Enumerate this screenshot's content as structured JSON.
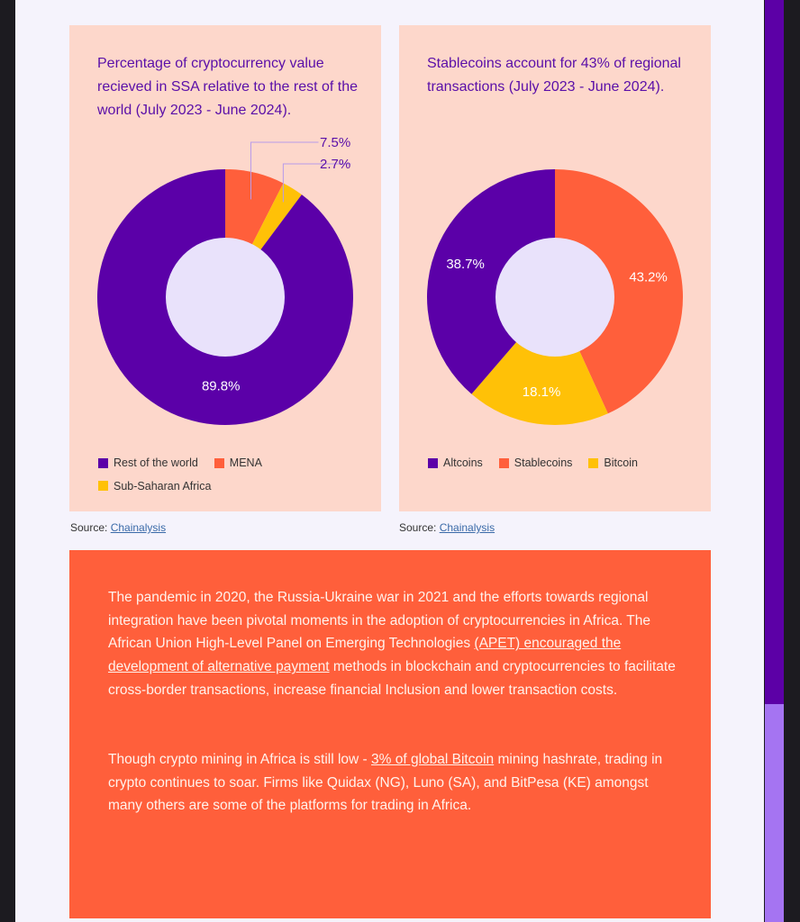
{
  "colors": {
    "purple": "#5b00a8",
    "orange": "#ff5f3b",
    "yellow": "#ffc107",
    "hole": "#e9e2fb"
  },
  "chart_data": [
    {
      "type": "pie",
      "title": "Percentage of cryptocurrency value recieved in SSA relative to the rest of the world (July 2023 - June 2024).",
      "categories": [
        "MENA",
        "Sub-Saharan Africa",
        "Rest of the world"
      ],
      "values": [
        7.5,
        2.7,
        89.8
      ],
      "labels": [
        "7.5%",
        "2.7%",
        "89.8%"
      ],
      "legend": [
        "Rest of the world",
        "MENA",
        "Sub-Saharan Africa"
      ],
      "legend_placement": "bottom",
      "donut": true
    },
    {
      "type": "pie",
      "title": "Stablecoins account for 43% of regional transactions (July 2023 - June 2024).",
      "categories": [
        "Stablecoins",
        "Bitcoin",
        "Altcoins"
      ],
      "values": [
        43.2,
        18.1,
        38.7
      ],
      "labels": [
        "43.2%",
        "18.1%",
        "38.7%"
      ],
      "legend": [
        "Altcoins",
        "Stablecoins",
        "Bitcoin"
      ],
      "legend_placement": "bottom",
      "donut": true
    }
  ],
  "source": {
    "label": "Source:",
    "link": "Chainalysis"
  },
  "body": {
    "p1_a": "The pandemic in 2020, the Russia-Ukraine war in 2021 and the efforts towards regional integration have been pivotal moments in the adoption of cryptocurrencies in Africa. The African Union High-Level Panel on Emerging Technologies ",
    "p1_link": "(APET) encouraged the development of alternative payment",
    "p1_b": " methods in blockchain and cryptocurrencies to facilitate cross-border transactions, increase financial Inclusion and lower transaction costs.",
    "p2_a": "Though crypto mining in Africa is still low - ",
    "p2_link": "3% of global Bitcoin",
    "p2_b": " mining hashrate, trading in crypto continues to soar. Firms like Quidax (NG), Luno (SA), and BitPesa (KE) amongst  many others are some of the platforms for trading in Africa."
  }
}
